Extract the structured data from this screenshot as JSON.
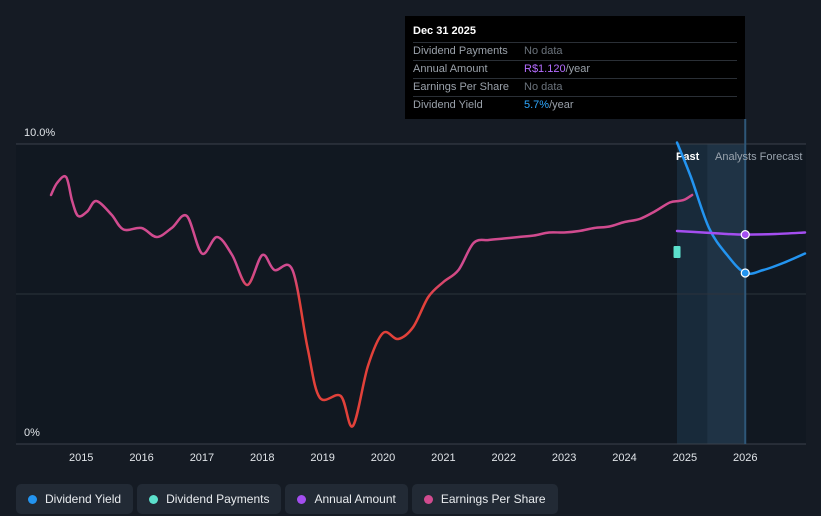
{
  "tooltip": {
    "date": "Dec 31 2025",
    "rows": [
      {
        "label": "Dividend Payments",
        "value": "No data",
        "unit": ""
      },
      {
        "label": "Annual Amount",
        "value": "R$1.120",
        "unit": "/year"
      },
      {
        "label": "Earnings Per Share",
        "value": "No data",
        "unit": ""
      },
      {
        "label": "Dividend Yield",
        "value": "5.7%",
        "unit": "/year"
      }
    ]
  },
  "labels": {
    "past": "Past",
    "forecast": "Analysts Forecast"
  },
  "legend": [
    {
      "label": "Dividend Yield",
      "color": "#2394f0"
    },
    {
      "label": "Dividend Payments",
      "color": "#5ce0cc"
    },
    {
      "label": "Annual Amount",
      "color": "#a44ef0"
    },
    {
      "label": "Earnings Per Share",
      "color": "#d14b8f"
    }
  ],
  "chart_data": {
    "type": "line",
    "y_tick_labels": [
      "10.0%",
      "0%"
    ],
    "ylim": [
      0,
      10
    ],
    "x_tick_labels": [
      "2015",
      "2016",
      "2017",
      "2018",
      "2019",
      "2020",
      "2021",
      "2022",
      "2023",
      "2024",
      "2025",
      "2026"
    ],
    "xlim": [
      2014.45,
      2026.99
    ],
    "forecast_start": 2025.37,
    "series": [
      {
        "name": "Earnings Per Share",
        "color": "#d14b8f",
        "low_color": "#e2413a",
        "points": [
          [
            2014.5,
            8.3
          ],
          [
            2014.6,
            8.7
          ],
          [
            2014.75,
            8.9
          ],
          [
            2014.85,
            8.1
          ],
          [
            2014.95,
            7.6
          ],
          [
            2015.1,
            7.75
          ],
          [
            2015.25,
            8.1
          ],
          [
            2015.5,
            7.65
          ],
          [
            2015.7,
            7.15
          ],
          [
            2016.0,
            7.2
          ],
          [
            2016.25,
            6.9
          ],
          [
            2016.5,
            7.2
          ],
          [
            2016.75,
            7.6
          ],
          [
            2017.0,
            6.35
          ],
          [
            2017.25,
            6.9
          ],
          [
            2017.5,
            6.3
          ],
          [
            2017.75,
            5.3
          ],
          [
            2018.0,
            6.3
          ],
          [
            2018.2,
            5.8
          ],
          [
            2018.5,
            5.8
          ],
          [
            2018.75,
            3.2
          ],
          [
            2018.95,
            1.55
          ],
          [
            2019.3,
            1.6
          ],
          [
            2019.5,
            0.6
          ],
          [
            2019.75,
            2.6
          ],
          [
            2020.0,
            3.7
          ],
          [
            2020.25,
            3.5
          ],
          [
            2020.5,
            3.9
          ],
          [
            2020.75,
            4.9
          ],
          [
            2021.0,
            5.4
          ],
          [
            2021.25,
            5.8
          ],
          [
            2021.5,
            6.7
          ],
          [
            2021.75,
            6.8
          ],
          [
            2022.0,
            6.85
          ],
          [
            2022.25,
            6.9
          ],
          [
            2022.5,
            6.95
          ],
          [
            2022.75,
            7.05
          ],
          [
            2023.0,
            7.05
          ],
          [
            2023.25,
            7.1
          ],
          [
            2023.5,
            7.2
          ],
          [
            2023.75,
            7.25
          ],
          [
            2024.0,
            7.4
          ],
          [
            2024.25,
            7.5
          ],
          [
            2024.5,
            7.75
          ],
          [
            2024.75,
            8.05
          ],
          [
            2024.9,
            8.1
          ],
          [
            2025.0,
            8.15
          ],
          [
            2025.12,
            8.3
          ]
        ]
      },
      {
        "name": "Dividend Yield",
        "color": "#2394f0",
        "points": [
          [
            2024.87,
            10.05
          ],
          [
            2025.1,
            8.9
          ],
          [
            2025.4,
            7.2
          ],
          [
            2025.7,
            6.3
          ],
          [
            2026.0,
            5.7
          ],
          [
            2026.3,
            5.8
          ],
          [
            2026.65,
            6.05
          ],
          [
            2026.99,
            6.35
          ]
        ],
        "marker": [
          2026.0,
          5.7
        ]
      },
      {
        "name": "Annual Amount",
        "color": "#a44ef0",
        "points": [
          [
            2024.87,
            7.1
          ],
          [
            2025.3,
            7.05
          ],
          [
            2025.7,
            7.0
          ],
          [
            2026.0,
            6.98
          ],
          [
            2026.5,
            7.0
          ],
          [
            2026.99,
            7.05
          ]
        ],
        "marker": [
          2026.0,
          6.98
        ]
      },
      {
        "name": "Dividend Payments",
        "color": "#5ce0cc",
        "points": [
          [
            2024.87,
            6.4
          ]
        ]
      }
    ]
  }
}
